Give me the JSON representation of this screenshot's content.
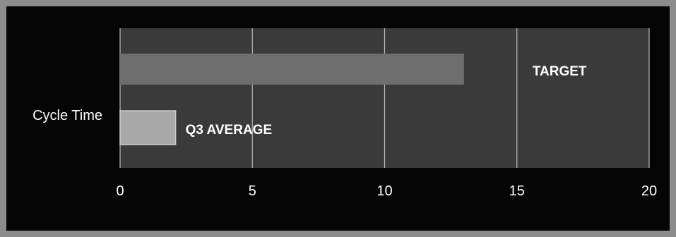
{
  "chart_data": {
    "type": "bar",
    "orientation": "horizontal",
    "categories": [
      "Cycle Time"
    ],
    "series": [
      {
        "name": "TARGET",
        "values": [
          13
        ],
        "color": "#6e6e6e"
      },
      {
        "name": "Q3 AVERAGE",
        "values": [
          2.1
        ],
        "color": "#a9a9a9"
      }
    ],
    "data_labels": [
      "TARGET",
      "Q3 AVERAGE"
    ],
    "title": "",
    "xlabel": "",
    "ylabel": "",
    "xlim": [
      0,
      20
    ],
    "xticks": [
      0,
      5,
      10,
      15,
      20
    ],
    "xtick_labels": [
      "0",
      "5",
      "10",
      "15",
      "20"
    ],
    "grid": true,
    "legend": "none"
  },
  "colors": {
    "background": "#050505",
    "plot_area": "#3a3a3a",
    "gridline": "#bdbdbd",
    "text": "#ffffff"
  }
}
